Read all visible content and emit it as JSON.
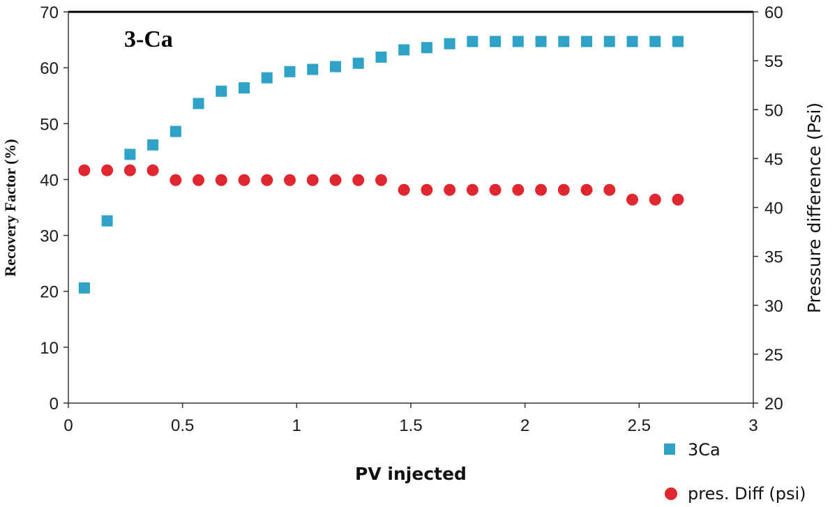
{
  "chart_data": {
    "type": "scatter",
    "title": "3-Ca",
    "xlabel": "PV injected",
    "ylabel_left": "Recovery Factor (%)",
    "ylabel_right": "Pressure difference (Psi)",
    "xlim": [
      0,
      3
    ],
    "ylim_left": [
      0,
      70
    ],
    "ylim_right": [
      20,
      60
    ],
    "x_ticks": [
      "0",
      "0.5",
      "1",
      "1.5",
      "2",
      "2.5",
      "3"
    ],
    "y_left_ticks": [
      "0",
      "10",
      "20",
      "30",
      "40",
      "50",
      "60",
      "70"
    ],
    "y_right_ticks": [
      "20",
      "25",
      "30",
      "35",
      "40",
      "45",
      "50",
      "55",
      "60"
    ],
    "grid": false,
    "legend_position": "bottom-right",
    "series": [
      {
        "name": "3Ca",
        "axis": "left",
        "marker": "square",
        "color": "#2fa3c7",
        "x": [
          0.07,
          0.17,
          0.27,
          0.37,
          0.47,
          0.57,
          0.67,
          0.77,
          0.87,
          0.97,
          1.07,
          1.17,
          1.27,
          1.37,
          1.47,
          1.57,
          1.67,
          1.77,
          1.87,
          1.97,
          2.07,
          2.17,
          2.27,
          2.37,
          2.47,
          2.57,
          2.67
        ],
        "y": [
          20.6,
          32.6,
          44.5,
          46.2,
          48.6,
          53.6,
          55.8,
          56.4,
          58.2,
          59.3,
          59.7,
          60.2,
          60.8,
          61.9,
          63.2,
          63.6,
          64.3,
          64.7,
          64.7,
          64.7,
          64.7,
          64.7,
          64.7,
          64.7,
          64.7,
          64.7,
          64.7
        ]
      },
      {
        "name": "pres. Diff (psi)",
        "axis": "right",
        "marker": "circle",
        "color": "#e0262f",
        "x": [
          0.07,
          0.17,
          0.27,
          0.37,
          0.47,
          0.57,
          0.67,
          0.77,
          0.87,
          0.97,
          1.07,
          1.17,
          1.27,
          1.37,
          1.47,
          1.57,
          1.67,
          1.77,
          1.87,
          1.97,
          2.07,
          2.17,
          2.27,
          2.37,
          2.47,
          2.57,
          2.67
        ],
        "y": [
          43.8,
          43.8,
          43.8,
          43.8,
          42.8,
          42.8,
          42.8,
          42.8,
          42.8,
          42.8,
          42.8,
          42.8,
          42.8,
          42.8,
          41.8,
          41.8,
          41.8,
          41.8,
          41.8,
          41.8,
          41.8,
          41.8,
          41.8,
          41.8,
          40.8,
          40.8,
          40.8
        ]
      }
    ]
  }
}
